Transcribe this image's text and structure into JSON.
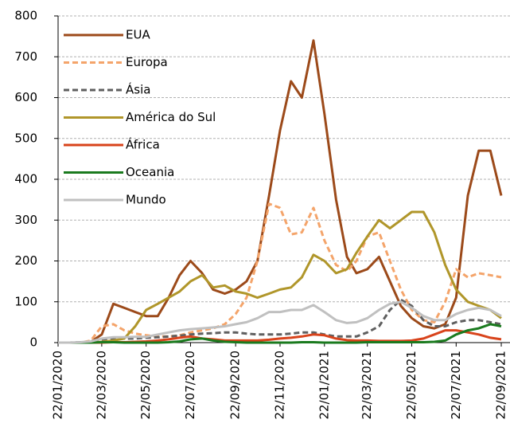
{
  "chart_data": {
    "type": "line",
    "x": [
      "22/01/2020",
      "07/02/2020",
      "22/02/2020",
      "07/03/2020",
      "22/03/2020",
      "07/04/2020",
      "22/04/2020",
      "07/05/2020",
      "22/05/2020",
      "07/06/2020",
      "22/06/2020",
      "07/07/2020",
      "22/07/2020",
      "07/08/2020",
      "22/08/2020",
      "07/09/2020",
      "22/09/2020",
      "07/10/2020",
      "22/10/2020",
      "07/11/2020",
      "22/11/2020",
      "07/12/2020",
      "22/12/2020",
      "07/01/2021",
      "22/01/2021",
      "07/02/2021",
      "22/02/2021",
      "07/03/2021",
      "22/03/2021",
      "07/04/2021",
      "22/04/2021",
      "07/05/2021",
      "22/05/2021",
      "07/06/2021",
      "22/06/2021",
      "07/07/2021",
      "22/07/2021",
      "07/08/2021",
      "22/08/2021",
      "07/09/2021",
      "22/09/2021"
    ],
    "series": [
      {
        "name": "EUA",
        "color": "#9c4a1a",
        "dashed": false,
        "values": [
          0,
          0,
          0,
          2,
          20,
          95,
          85,
          75,
          65,
          65,
          110,
          165,
          200,
          170,
          130,
          120,
          130,
          150,
          200,
          360,
          520,
          640,
          600,
          740,
          560,
          350,
          210,
          170,
          180,
          210,
          150,
          90,
          60,
          40,
          35,
          45,
          110,
          360,
          470,
          470,
          360
        ]
      },
      {
        "name": "Europa",
        "color": "#f4a46a",
        "dashed": true,
        "values": [
          0,
          0,
          0,
          5,
          40,
          45,
          30,
          22,
          18,
          15,
          15,
          18,
          25,
          30,
          35,
          45,
          70,
          110,
          200,
          340,
          330,
          265,
          270,
          330,
          250,
          190,
          175,
          200,
          260,
          270,
          200,
          130,
          80,
          55,
          50,
          100,
          180,
          160,
          170,
          165,
          160
        ]
      },
      {
        "name": "Ásia",
        "color": "#5f5f5f",
        "dashed": true,
        "values": [
          0,
          0,
          1,
          2,
          5,
          8,
          10,
          10,
          12,
          13,
          15,
          17,
          20,
          22,
          23,
          25,
          25,
          22,
          20,
          20,
          20,
          22,
          25,
          25,
          20,
          15,
          15,
          15,
          25,
          40,
          80,
          105,
          90,
          55,
          40,
          40,
          50,
          55,
          55,
          50,
          45
        ]
      },
      {
        "name": "América do Sul",
        "color": "#b0962a",
        "dashed": false,
        "values": [
          0,
          0,
          0,
          0,
          2,
          5,
          10,
          40,
          80,
          95,
          110,
          125,
          150,
          165,
          135,
          140,
          125,
          120,
          110,
          120,
          130,
          135,
          160,
          215,
          200,
          170,
          180,
          220,
          260,
          300,
          280,
          300,
          320,
          320,
          270,
          190,
          130,
          100,
          90,
          80,
          60
        ]
      },
      {
        "name": "África",
        "color": "#d8431b",
        "dashed": false,
        "values": [
          0,
          0,
          0,
          0,
          0,
          1,
          1,
          2,
          3,
          5,
          8,
          12,
          15,
          10,
          8,
          5,
          5,
          5,
          5,
          7,
          10,
          12,
          15,
          20,
          18,
          10,
          6,
          5,
          5,
          4,
          4,
          4,
          5,
          10,
          20,
          30,
          30,
          25,
          20,
          12,
          8
        ]
      },
      {
        "name": "Oceania",
        "color": "#1a7a1e",
        "dashed": false,
        "values": [
          0,
          0,
          0,
          0,
          1,
          1,
          0,
          0,
          0,
          0,
          1,
          3,
          8,
          10,
          5,
          2,
          1,
          0,
          0,
          0,
          0,
          0,
          1,
          1,
          0,
          0,
          0,
          0,
          1,
          1,
          1,
          1,
          1,
          1,
          2,
          5,
          20,
          30,
          35,
          45,
          40
        ]
      },
      {
        "name": "Mundo",
        "color": "#c0c0c0",
        "dashed": false,
        "values": [
          0,
          0,
          1,
          3,
          10,
          13,
          13,
          14,
          14,
          20,
          25,
          30,
          33,
          35,
          37,
          40,
          45,
          50,
          60,
          75,
          75,
          80,
          80,
          92,
          75,
          55,
          48,
          50,
          60,
          80,
          95,
          100,
          85,
          65,
          55,
          55,
          70,
          80,
          85,
          80,
          65
        ]
      }
    ],
    "xlim": [
      "22/01/2020",
      "04/10/2021"
    ],
    "xticks": [
      "22/01/2020",
      "22/03/2020",
      "22/05/2020",
      "22/07/2020",
      "22/09/2020",
      "22/11/2020",
      "22/01/2021",
      "22/03/2021",
      "22/05/2021",
      "22/07/2021",
      "22/09/2021"
    ],
    "ylim": [
      0,
      800
    ],
    "yticks": [
      0,
      100,
      200,
      300,
      400,
      500,
      600,
      700,
      800
    ],
    "grid": true,
    "legend": "upper left"
  }
}
